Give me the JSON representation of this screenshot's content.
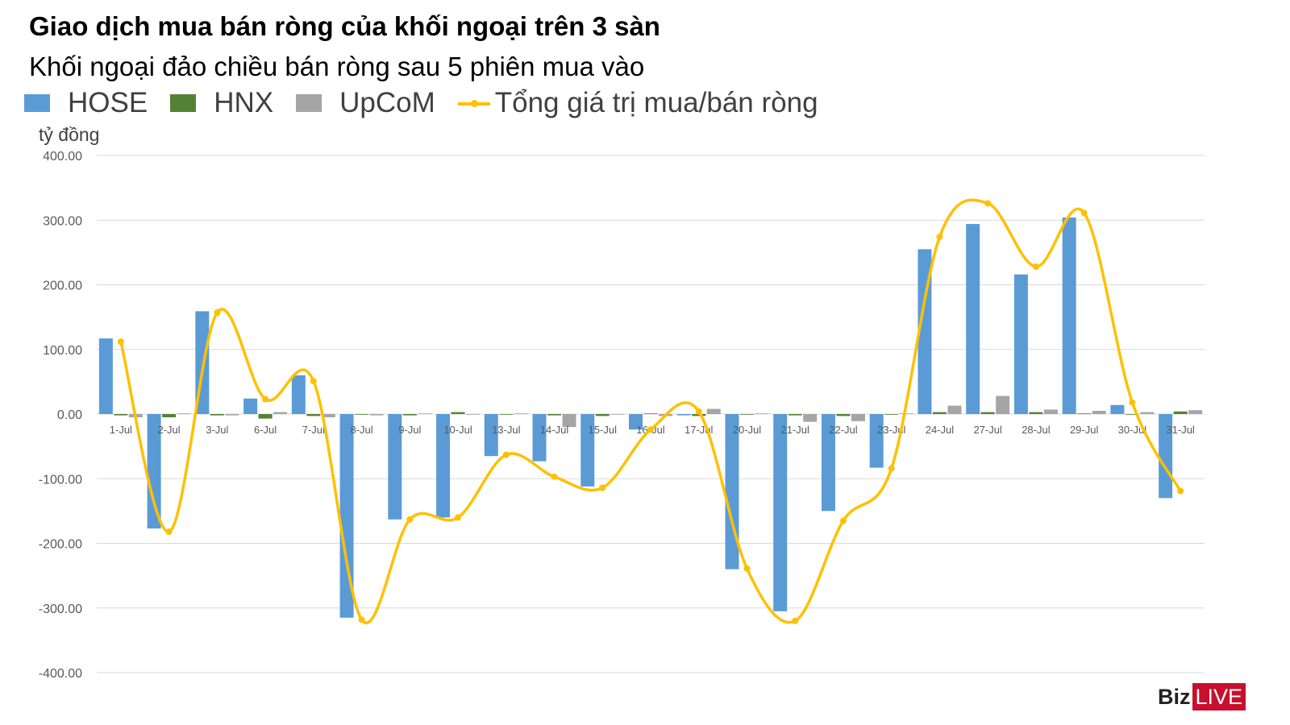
{
  "chart_data": {
    "type": "bar",
    "title": "Giao dịch mua bán ròng của khối ngoại trên 3 sàn",
    "subtitle": "Khối ngoại đảo chiều bán ròng sau 5 phiên mua vào",
    "ylabel": "tỷ đồng",
    "xlabel": "",
    "ylim": [
      -400,
      400
    ],
    "yticks": [
      "400.00",
      "300.00",
      "200.00",
      "100.00",
      "0.00",
      "-100.00",
      "-200.00",
      "-300.00",
      "-400.00"
    ],
    "grid": true,
    "legend_position": "top-left",
    "categories": [
      "1-Jul",
      "2-Jul",
      "3-Jul",
      "6-Jul",
      "7-Jul",
      "8-Jul",
      "9-Jul",
      "10-Jul",
      "13-Jul",
      "14-Jul",
      "15-Jul",
      "16-Jul",
      "17-Jul",
      "20-Jul",
      "21-Jul",
      "22-Jul",
      "23-Jul",
      "24-Jul",
      "27-Jul",
      "28-Jul",
      "29-Jul",
      "30-Jul",
      "31-Jul"
    ],
    "series": [
      {
        "name": "HOSE",
        "type": "bar",
        "color": "#5b9bd5",
        "values": [
          117,
          -177,
          159,
          24,
          60,
          -315,
          -163,
          -160,
          -65,
          -73,
          -112,
          -24,
          -2,
          -240,
          -305,
          -150,
          -83,
          255,
          294,
          216,
          304,
          14,
          -130
        ]
      },
      {
        "name": "HNX",
        "type": "bar",
        "color": "#548235",
        "values": [
          -2,
          -5,
          -2,
          -7,
          -3,
          -1,
          -2,
          3,
          -1,
          -2,
          -3,
          1,
          -3,
          -1,
          -2,
          -3,
          -1,
          3,
          3,
          3,
          1,
          -1,
          4
        ]
      },
      {
        "name": "UpCoM",
        "type": "bar",
        "color": "#a5a5a5",
        "values": [
          -5,
          1,
          -2,
          3,
          -5,
          -2,
          1,
          -1,
          1,
          -20,
          -1,
          -3,
          8,
          1,
          -12,
          -11,
          1,
          13,
          28,
          7,
          5,
          3,
          6
        ]
      },
      {
        "name": "Tổng giá trị mua/bán ròng",
        "type": "line",
        "color": "#ffc000",
        "values": [
          112,
          -182,
          157,
          23,
          51,
          -318,
          -163,
          -160,
          -63,
          -97,
          -114,
          -24,
          4,
          -239,
          -320,
          -165,
          -84,
          274,
          326,
          228,
          311,
          18,
          -119
        ]
      }
    ]
  },
  "watermark": {
    "part1": "Biz",
    "part2": "LIVE"
  }
}
